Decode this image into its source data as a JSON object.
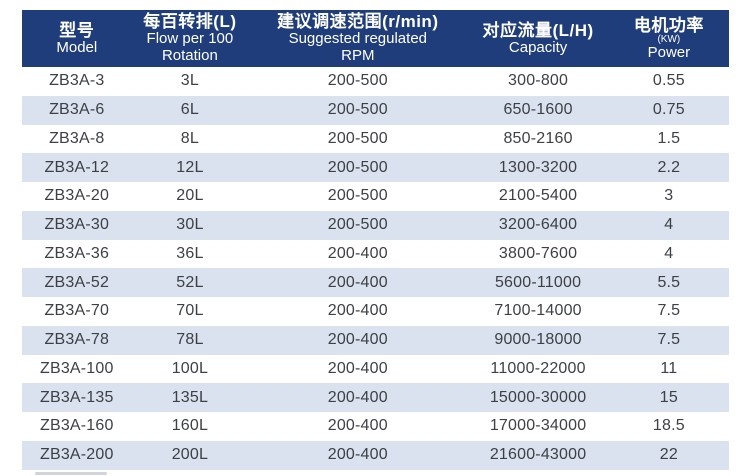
{
  "colors": {
    "header_bg": "#1f3d7a",
    "header_text": "#ffffff",
    "row_alt_bg": "#dae1ef",
    "row_text": "#3d4145",
    "page_bg": "#ffffff"
  },
  "table": {
    "header": {
      "columns": [
        {
          "cn": "型号",
          "en1": "Model",
          "en2": "",
          "small": ""
        },
        {
          "cn": "每百转排(L)",
          "en1": "Flow per 100",
          "en2": "Rotation",
          "small": ""
        },
        {
          "cn": "建议调速范围(r/min)",
          "en1": "Suggested regulated",
          "en2": "RPM",
          "small": ""
        },
        {
          "cn": "对应流量(L/H)",
          "en1": "Capacity",
          "en2": "",
          "small": ""
        },
        {
          "cn": "电机功率",
          "en1": "Power",
          "en2": "",
          "small": "(KW)"
        }
      ]
    },
    "rows": [
      [
        "ZB3A-3",
        "3L",
        "200-500",
        "300-800",
        "0.55"
      ],
      [
        "ZB3A-6",
        "6L",
        "200-500",
        "650-1600",
        "0.75"
      ],
      [
        "ZB3A-8",
        "8L",
        "200-500",
        "850-2160",
        "1.5"
      ],
      [
        "ZB3A-12",
        "12L",
        "200-500",
        "1300-3200",
        "2.2"
      ],
      [
        "ZB3A-20",
        "20L",
        "200-500",
        "2100-5400",
        "3"
      ],
      [
        "ZB3A-30",
        "30L",
        "200-500",
        "3200-6400",
        "4"
      ],
      [
        "ZB3A-36",
        "36L",
        "200-400",
        "3800-7600",
        "4"
      ],
      [
        "ZB3A-52",
        "52L",
        "200-400",
        "5600-11000",
        "5.5"
      ],
      [
        "ZB3A-70",
        "70L",
        "200-400",
        "7100-14000",
        "7.5"
      ],
      [
        "ZB3A-78",
        "78L",
        "200-400",
        "9000-18000",
        "7.5"
      ],
      [
        "ZB3A-100",
        "100L",
        "200-400",
        "11000-22000",
        "11"
      ],
      [
        "ZB3A-135",
        "135L",
        "200-400",
        "15000-30000",
        "15"
      ],
      [
        "ZB3A-160",
        "160L",
        "200-400",
        "17000-34000",
        "18.5"
      ],
      [
        "ZB3A-200",
        "200L",
        "200-400",
        "21600-43000",
        "22"
      ]
    ]
  }
}
